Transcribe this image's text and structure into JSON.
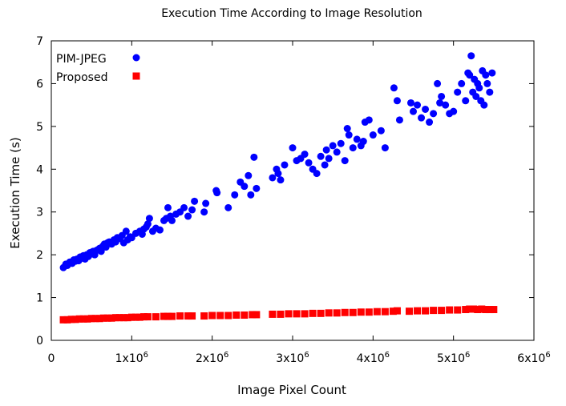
{
  "chart_data": {
    "type": "scatter",
    "title": "Execution Time According to Image Resolution",
    "xlabel": "Image Pixel Count",
    "ylabel": "Execution Time (s)",
    "xlim": [
      0,
      6000000
    ],
    "ylim": [
      0,
      7
    ],
    "grid": false,
    "legend_position": "top-left",
    "x_ticks": [
      {
        "value": 0,
        "base": "0",
        "exp": ""
      },
      {
        "value": 1000000,
        "base": "1x10",
        "exp": "6"
      },
      {
        "value": 2000000,
        "base": "2x10",
        "exp": "6"
      },
      {
        "value": 3000000,
        "base": "3x10",
        "exp": "6"
      },
      {
        "value": 4000000,
        "base": "4x10",
        "exp": "6"
      },
      {
        "value": 5000000,
        "base": "5x10",
        "exp": "6"
      },
      {
        "value": 6000000,
        "base": "6x10",
        "exp": "6"
      }
    ],
    "y_ticks": [
      0,
      1,
      2,
      3,
      4,
      5,
      6,
      7
    ],
    "series": [
      {
        "name": "PIM-JPEG",
        "color": "#0000ff",
        "marker": "circle",
        "points": [
          [
            150000,
            1.7
          ],
          [
            180000,
            1.78
          ],
          [
            200000,
            1.75
          ],
          [
            230000,
            1.83
          ],
          [
            260000,
            1.8
          ],
          [
            280000,
            1.88
          ],
          [
            300000,
            1.85
          ],
          [
            320000,
            1.9
          ],
          [
            340000,
            1.86
          ],
          [
            360000,
            1.95
          ],
          [
            380000,
            1.92
          ],
          [
            400000,
            1.98
          ],
          [
            420000,
            1.9
          ],
          [
            440000,
            2.0
          ],
          [
            460000,
            1.96
          ],
          [
            480000,
            2.05
          ],
          [
            500000,
            2.02
          ],
          [
            520000,
            2.08
          ],
          [
            540000,
            2.0
          ],
          [
            560000,
            2.1
          ],
          [
            580000,
            2.12
          ],
          [
            600000,
            2.15
          ],
          [
            620000,
            2.08
          ],
          [
            640000,
            2.2
          ],
          [
            660000,
            2.25
          ],
          [
            680000,
            2.18
          ],
          [
            700000,
            2.28
          ],
          [
            720000,
            2.3
          ],
          [
            750000,
            2.25
          ],
          [
            780000,
            2.35
          ],
          [
            800000,
            2.3
          ],
          [
            820000,
            2.4
          ],
          [
            850000,
            2.38
          ],
          [
            880000,
            2.45
          ],
          [
            900000,
            2.28
          ],
          [
            930000,
            2.55
          ],
          [
            950000,
            2.35
          ],
          [
            980000,
            2.42
          ],
          [
            1000000,
            2.4
          ],
          [
            1050000,
            2.5
          ],
          [
            1100000,
            2.55
          ],
          [
            1130000,
            2.48
          ],
          [
            1150000,
            2.6
          ],
          [
            1180000,
            2.65
          ],
          [
            1200000,
            2.72
          ],
          [
            1220000,
            2.85
          ],
          [
            1260000,
            2.55
          ],
          [
            1300000,
            2.62
          ],
          [
            1350000,
            2.58
          ],
          [
            1400000,
            2.8
          ],
          [
            1430000,
            2.85
          ],
          [
            1450000,
            3.1
          ],
          [
            1480000,
            2.9
          ],
          [
            1500000,
            2.8
          ],
          [
            1550000,
            2.95
          ],
          [
            1600000,
            3.0
          ],
          [
            1650000,
            3.1
          ],
          [
            1700000,
            2.9
          ],
          [
            1750000,
            3.05
          ],
          [
            1780000,
            3.25
          ],
          [
            1900000,
            3.0
          ],
          [
            1920000,
            3.2
          ],
          [
            2050000,
            3.5
          ],
          [
            2060000,
            3.45
          ],
          [
            2200000,
            3.1
          ],
          [
            2280000,
            3.4
          ],
          [
            2350000,
            3.7
          ],
          [
            2400000,
            3.6
          ],
          [
            2450000,
            3.85
          ],
          [
            2480000,
            3.4
          ],
          [
            2520000,
            4.28
          ],
          [
            2550000,
            3.55
          ],
          [
            2750000,
            3.8
          ],
          [
            2800000,
            4.0
          ],
          [
            2820000,
            3.9
          ],
          [
            2850000,
            3.75
          ],
          [
            2900000,
            4.1
          ],
          [
            3000000,
            4.5
          ],
          [
            3050000,
            4.2
          ],
          [
            3100000,
            4.25
          ],
          [
            3150000,
            4.35
          ],
          [
            3200000,
            4.15
          ],
          [
            3250000,
            4.0
          ],
          [
            3300000,
            3.9
          ],
          [
            3350000,
            4.3
          ],
          [
            3400000,
            4.1
          ],
          [
            3420000,
            4.45
          ],
          [
            3450000,
            4.25
          ],
          [
            3500000,
            4.55
          ],
          [
            3550000,
            4.4
          ],
          [
            3600000,
            4.6
          ],
          [
            3650000,
            4.2
          ],
          [
            3680000,
            4.95
          ],
          [
            3700000,
            4.8
          ],
          [
            3750000,
            4.5
          ],
          [
            3800000,
            4.7
          ],
          [
            3850000,
            4.55
          ],
          [
            3880000,
            4.65
          ],
          [
            3900000,
            5.1
          ],
          [
            3950000,
            5.15
          ],
          [
            4000000,
            4.8
          ],
          [
            4100000,
            4.9
          ],
          [
            4150000,
            4.5
          ],
          [
            4260000,
            5.9
          ],
          [
            4300000,
            5.6
          ],
          [
            4330000,
            5.15
          ],
          [
            4470000,
            5.55
          ],
          [
            4500000,
            5.35
          ],
          [
            4550000,
            5.5
          ],
          [
            4600000,
            5.2
          ],
          [
            4650000,
            5.4
          ],
          [
            4700000,
            5.1
          ],
          [
            4750000,
            5.3
          ],
          [
            4800000,
            6.0
          ],
          [
            4830000,
            5.55
          ],
          [
            4850000,
            5.7
          ],
          [
            4900000,
            5.5
          ],
          [
            4950000,
            5.3
          ],
          [
            5000000,
            5.35
          ],
          [
            5050000,
            5.8
          ],
          [
            5100000,
            6.0
          ],
          [
            5150000,
            5.6
          ],
          [
            5180000,
            6.25
          ],
          [
            5200000,
            6.2
          ],
          [
            5220000,
            6.65
          ],
          [
            5240000,
            5.8
          ],
          [
            5260000,
            6.1
          ],
          [
            5280000,
            5.7
          ],
          [
            5300000,
            6.0
          ],
          [
            5320000,
            5.9
          ],
          [
            5340000,
            5.6
          ],
          [
            5360000,
            6.3
          ],
          [
            5380000,
            5.5
          ],
          [
            5400000,
            6.2
          ],
          [
            5420000,
            6.0
          ],
          [
            5450000,
            5.8
          ],
          [
            5480000,
            6.25
          ]
        ]
      },
      {
        "name": "Proposed",
        "color": "#ff0000",
        "marker": "square",
        "points": [
          [
            150000,
            0.48
          ],
          [
            200000,
            0.48
          ],
          [
            250000,
            0.49
          ],
          [
            300000,
            0.49
          ],
          [
            350000,
            0.5
          ],
          [
            400000,
            0.5
          ],
          [
            450000,
            0.5
          ],
          [
            500000,
            0.51
          ],
          [
            550000,
            0.51
          ],
          [
            600000,
            0.51
          ],
          [
            650000,
            0.52
          ],
          [
            700000,
            0.52
          ],
          [
            750000,
            0.52
          ],
          [
            800000,
            0.53
          ],
          [
            850000,
            0.53
          ],
          [
            900000,
            0.53
          ],
          [
            950000,
            0.53
          ],
          [
            1000000,
            0.54
          ],
          [
            1050000,
            0.54
          ],
          [
            1100000,
            0.54
          ],
          [
            1150000,
            0.55
          ],
          [
            1200000,
            0.55
          ],
          [
            1300000,
            0.55
          ],
          [
            1400000,
            0.56
          ],
          [
            1450000,
            0.56
          ],
          [
            1500000,
            0.56
          ],
          [
            1600000,
            0.57
          ],
          [
            1700000,
            0.57
          ],
          [
            1750000,
            0.57
          ],
          [
            1900000,
            0.57
          ],
          [
            2000000,
            0.58
          ],
          [
            2100000,
            0.58
          ],
          [
            2200000,
            0.58
          ],
          [
            2300000,
            0.59
          ],
          [
            2400000,
            0.59
          ],
          [
            2500000,
            0.6
          ],
          [
            2550000,
            0.6
          ],
          [
            2750000,
            0.61
          ],
          [
            2850000,
            0.61
          ],
          [
            2950000,
            0.62
          ],
          [
            3050000,
            0.62
          ],
          [
            3150000,
            0.62
          ],
          [
            3250000,
            0.63
          ],
          [
            3350000,
            0.63
          ],
          [
            3450000,
            0.64
          ],
          [
            3550000,
            0.64
          ],
          [
            3650000,
            0.65
          ],
          [
            3750000,
            0.65
          ],
          [
            3850000,
            0.66
          ],
          [
            3950000,
            0.66
          ],
          [
            4050000,
            0.67
          ],
          [
            4150000,
            0.67
          ],
          [
            4250000,
            0.68
          ],
          [
            4300000,
            0.69
          ],
          [
            4450000,
            0.68
          ],
          [
            4550000,
            0.69
          ],
          [
            4650000,
            0.69
          ],
          [
            4750000,
            0.7
          ],
          [
            4850000,
            0.7
          ],
          [
            4950000,
            0.71
          ],
          [
            5050000,
            0.71
          ],
          [
            5150000,
            0.72
          ],
          [
            5200000,
            0.73
          ],
          [
            5250000,
            0.73
          ],
          [
            5300000,
            0.72
          ],
          [
            5350000,
            0.73
          ],
          [
            5400000,
            0.72
          ],
          [
            5450000,
            0.72
          ],
          [
            5500000,
            0.72
          ]
        ]
      }
    ]
  }
}
